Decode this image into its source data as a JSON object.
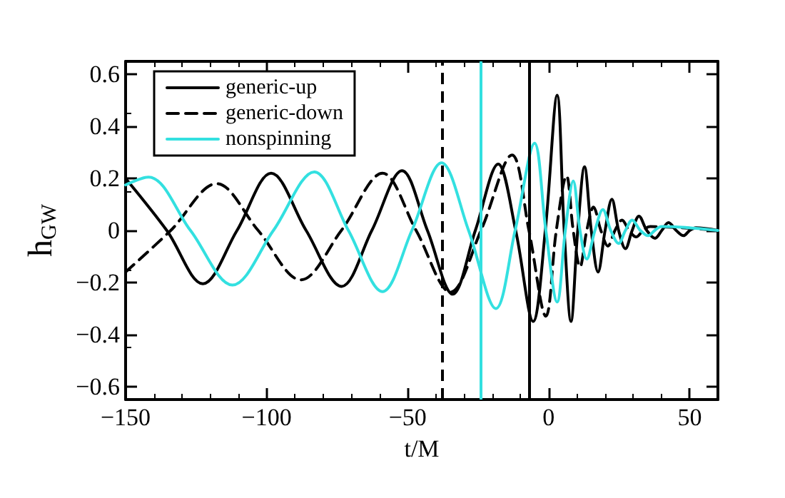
{
  "chart_data": {
    "type": "line",
    "xlabel": "t/M",
    "ylabel": "h$_{GW}$",
    "xlim": [
      -150,
      60
    ],
    "xticks": [
      -150,
      -100,
      -50,
      0,
      50
    ],
    "ylim": [
      -0.65,
      0.65
    ],
    "yticks": [
      {
        "value": -0.6,
        "label": "−0.6"
      },
      {
        "value": -0.4,
        "label": "−0.4"
      },
      {
        "value": -0.2,
        "label": "−0.2"
      },
      0,
      0.2,
      0.4,
      0.6
    ],
    "grid": false,
    "legend": "top left",
    "marker": "none",
    "ref_lines": [
      {
        "axis": "x",
        "value": -38,
        "color": "#000000",
        "line_style": "dashed"
      },
      {
        "axis": "x",
        "value": -24,
        "color": "#33e0e0",
        "line_style": "solid"
      },
      {
        "axis": "x",
        "value": -7,
        "color": "#000000",
        "line_style": "solid"
      }
    ],
    "series": [
      {
        "name": "generic-up",
        "color": "#000000",
        "line_style": "solid",
        "x": [
          -150,
          -135.4,
          -122.6,
          -110.5,
          -98.4,
          -86,
          -73.4,
          -62.7,
          -52,
          -43,
          -34,
          -26,
          -17.9,
          -11.7,
          -5.5,
          -1.2,
          3.0,
          5.5,
          7.9,
          10.3,
          12.7,
          15.1,
          17.5,
          20,
          22.4,
          24.8,
          27.2,
          29.6,
          32,
          34.8,
          37.7,
          40.1,
          42.5,
          45.2,
          47.8,
          50,
          52.2,
          60
        ],
        "values": [
          0.2,
          0,
          -0.205,
          0,
          0.22,
          0,
          -0.215,
          0,
          0.23,
          0,
          -0.245,
          0,
          0.255,
          0,
          -0.35,
          0,
          0.52,
          0,
          -0.35,
          0,
          0.245,
          0,
          -0.16,
          0,
          0.12,
          0,
          -0.07,
          0,
          0.055,
          0,
          -0.03,
          0,
          0.03,
          0,
          -0.02,
          0,
          0.01,
          0
        ]
      },
      {
        "name": "generic-down",
        "color": "#000000",
        "line_style": "dashed",
        "x": [
          -150,
          -134,
          -117.7,
          -103,
          -87.9,
          -73.5,
          -58.9,
          -47,
          -34.8,
          -24,
          -13,
          -7,
          -1,
          2.7,
          6.3,
          8.7,
          11.1,
          13.5,
          15.9,
          18.5,
          21,
          23.5,
          26,
          28.5,
          31,
          33.5,
          36,
          60
        ],
        "values": [
          -0.16,
          0,
          0.18,
          0,
          -0.19,
          0,
          0.22,
          0,
          -0.237,
          0,
          0.29,
          0,
          -0.33,
          0,
          0.21,
          0,
          -0.14,
          0,
          0.09,
          0,
          -0.06,
          0,
          0.04,
          0,
          -0.025,
          0,
          0.015,
          0
        ]
      },
      {
        "name": "nonspinning",
        "color": "#33e0e0",
        "line_style": "solid",
        "x": [
          -150,
          -141.9,
          -127,
          -112.1,
          -97.6,
          -83.1,
          -71,
          -58.9,
          -48.5,
          -38,
          -28.4,
          -18.7,
          -11.9,
          -5,
          -1,
          3,
          5.9,
          8.7,
          11.1,
          13.5,
          16.4,
          19.2,
          22,
          24.8,
          27.2,
          29.6,
          32.5,
          35.3,
          37.6,
          40,
          60
        ],
        "values": [
          0.175,
          0.205,
          0,
          -0.21,
          0,
          0.225,
          0,
          -0.235,
          0,
          0.26,
          0,
          -0.3,
          0,
          0.335,
          0,
          -0.275,
          0,
          0.19,
          0,
          -0.11,
          0,
          0.08,
          0,
          -0.05,
          0,
          0.04,
          0,
          -0.02,
          0,
          0.015,
          0
        ]
      }
    ]
  }
}
